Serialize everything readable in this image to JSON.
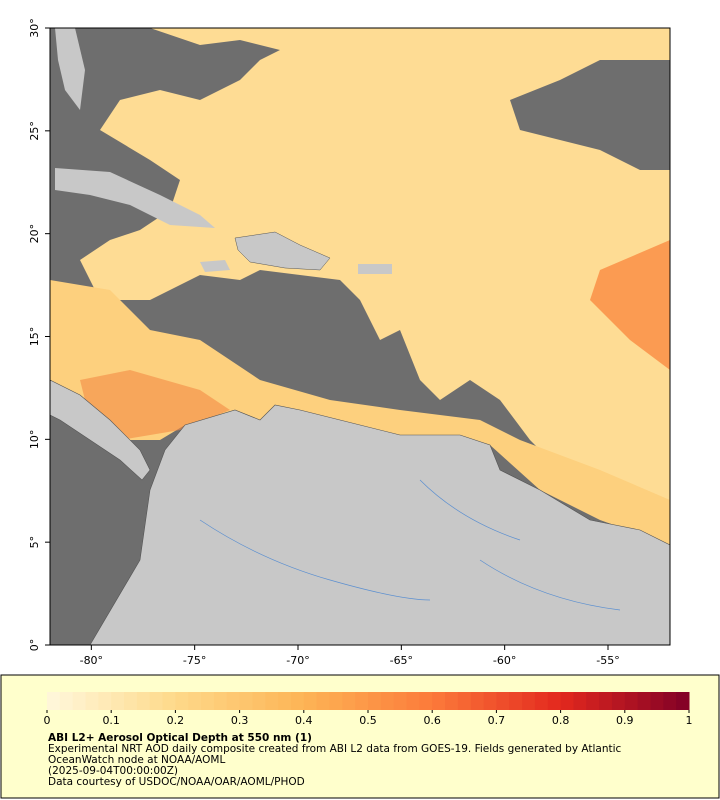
{
  "map": {
    "xlim": [
      -82,
      -52
    ],
    "ylim": [
      0,
      30
    ],
    "xticks": [
      {
        "value": -80,
        "label": "-80°"
      },
      {
        "value": -75,
        "label": "-75°"
      },
      {
        "value": -70,
        "label": "-70°"
      },
      {
        "value": -65,
        "label": "-65°"
      },
      {
        "value": -60,
        "label": "-60°"
      },
      {
        "value": -55,
        "label": "-55°"
      }
    ],
    "yticks": [
      {
        "value": 0,
        "label": "0°"
      },
      {
        "value": 5,
        "label": "5°"
      },
      {
        "value": 10,
        "label": "10°"
      },
      {
        "value": 15,
        "label": "15°"
      },
      {
        "value": 20,
        "label": "20°"
      },
      {
        "value": 25,
        "label": "25°"
      },
      {
        "value": 30,
        "label": "30°"
      }
    ]
  },
  "colorbar": {
    "range": [
      0,
      1
    ],
    "ticks": [
      0,
      0.1,
      0.2,
      0.3,
      0.4,
      0.5,
      0.6,
      0.7,
      0.8,
      0.9,
      1
    ],
    "colors": [
      "#fff7dc",
      "#fed98a",
      "#fdb455",
      "#fc7a3a",
      "#e3281e",
      "#800026"
    ]
  },
  "caption": {
    "title": "ABI L2+ Aerosol Optical Depth at 550 nm (1)",
    "description": "Experimental NRT AOD daily composite created from ABI L2 data from GOES-19. Fields generated by Atlantic OceanWatch node at NOAA/AOML",
    "timestamp": "(2025-09-04T00:00:00Z)",
    "credit": "Data courtesy of USDOC/NOAA/OAR/AOML/PHOD"
  }
}
